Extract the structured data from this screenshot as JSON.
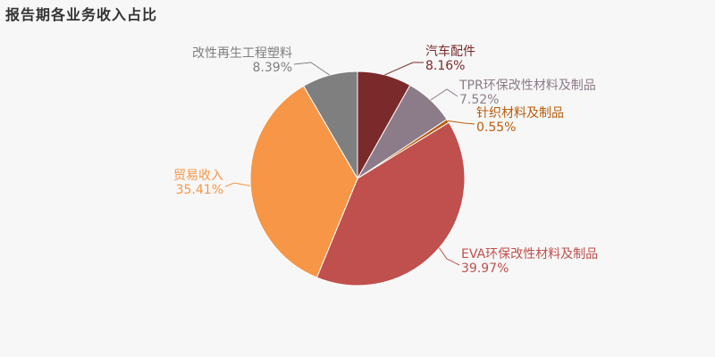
{
  "chart_data": {
    "type": "pie",
    "title": "报告期各业务收入占比",
    "slices": [
      {
        "name": "汽车配件",
        "value": 8.16,
        "percent_label": "8.16%",
        "color": "#7a2a2a",
        "text_color": "#7a2a2a"
      },
      {
        "name": "TPR环保改性材料及制品",
        "value": 7.52,
        "percent_label": "7.52%",
        "color": "#8c7b89",
        "text_color": "#8c7b89"
      },
      {
        "name": "针织材料及制品",
        "value": 0.55,
        "percent_label": "0.55%",
        "color": "#b85c0a",
        "text_color": "#b85c0a"
      },
      {
        "name": "EVA环保改性材料及制品",
        "value": 39.97,
        "percent_label": "39.97%",
        "color": "#c0504d",
        "text_color": "#c0504d"
      },
      {
        "name": "贸易收入",
        "value": 35.41,
        "percent_label": "35.41%",
        "color": "#f79646",
        "text_color": "#f79646"
      },
      {
        "name": "改性再生工程塑料",
        "value": 8.39,
        "percent_label": "8.39%",
        "color": "#7f7f7f",
        "text_color": "#7f7f7f"
      }
    ]
  }
}
